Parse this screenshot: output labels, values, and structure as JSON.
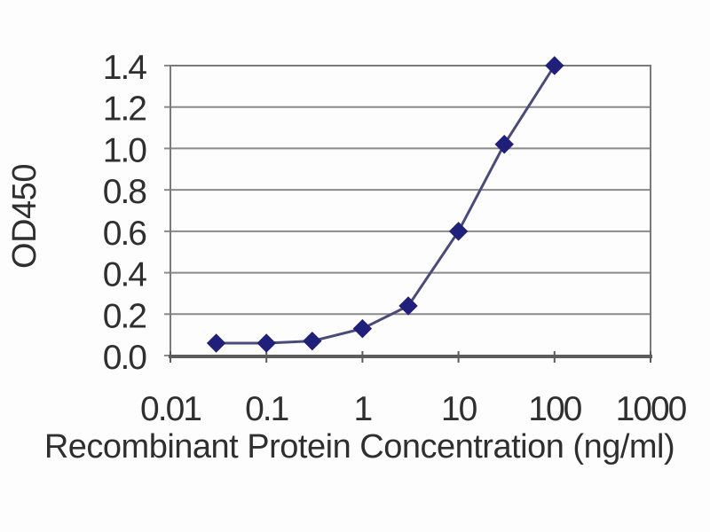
{
  "chart_data": {
    "type": "line",
    "title": "",
    "xlabel": "Recombinant Protein Concentration (ng/ml)",
    "ylabel": "OD450",
    "x_scale": "log",
    "xlim": [
      0.01,
      1000
    ],
    "ylim": [
      0,
      1.4
    ],
    "x_ticks": [
      0.01,
      0.1,
      1,
      10,
      100,
      1000
    ],
    "x_tick_labels": [
      "0.01",
      "0.1",
      "1",
      "10",
      "100",
      "1000"
    ],
    "y_ticks": [
      0.0,
      0.2,
      0.4,
      0.6,
      0.8,
      1.0,
      1.2,
      1.4
    ],
    "y_tick_labels": [
      "0.0",
      "0.2",
      "0.4",
      "0.6",
      "0.8",
      "1.0",
      "1.2",
      "1.4"
    ],
    "grid": "horizontal",
    "legend": "none",
    "series": [
      {
        "name": "OD450",
        "marker": "diamond",
        "x": [
          0.03,
          0.1,
          0.3,
          1,
          3,
          10,
          30,
          100
        ],
        "y": [
          0.06,
          0.06,
          0.07,
          0.13,
          0.24,
          0.6,
          1.02,
          1.4
        ]
      }
    ],
    "colors": {
      "background": "#fdfdfd",
      "grid": "#8a8a8a",
      "frame": "#7a7a7a",
      "axis": "#5c5c5c",
      "line": "#4b4b78",
      "marker": "#20207a",
      "text": "#2f2f2f"
    }
  }
}
